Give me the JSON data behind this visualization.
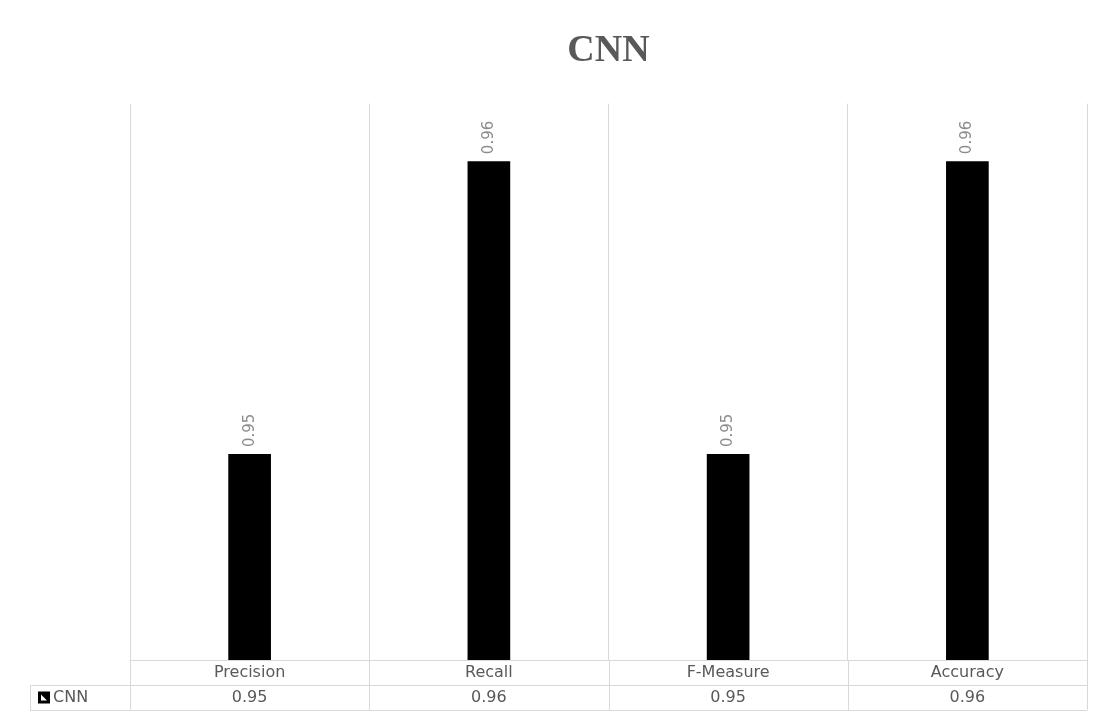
{
  "chart_data": {
    "type": "bar",
    "title": "CNN",
    "categories": [
      "Precision",
      "Recall",
      "F-Measure",
      "Accuracy"
    ],
    "series": [
      {
        "name": "CNN",
        "color": "#000000",
        "values": [
          0.95,
          0.96,
          0.95,
          0.96
        ]
      }
    ],
    "annotations": [
      "0.95",
      "0.96",
      "0.95",
      "0.96"
    ],
    "ylim": [
      0.943,
      0.962
    ],
    "data_labels": true,
    "legend": "bottom",
    "grid": "x"
  }
}
